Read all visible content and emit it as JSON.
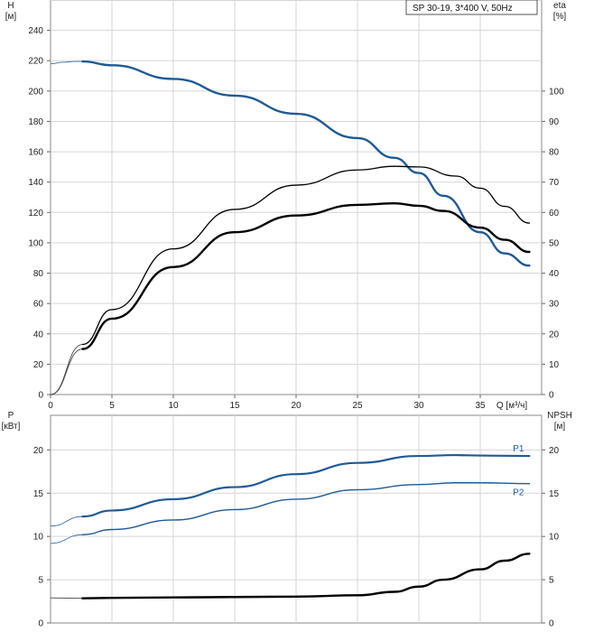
{
  "chart_data": [
    {
      "type": "line",
      "legend": "SP 30-19, 3*400 V, 50Hz",
      "xlabel": "Q [м³/ч]",
      "ylabel_left": [
        "H",
        "[м]"
      ],
      "ylabel_right": [
        "eta",
        "[%]"
      ],
      "xlim": [
        0,
        40
      ],
      "ylim_left": [
        0,
        260
      ],
      "ylim_right": [
        0,
        130
      ],
      "x_ticks": [
        "0",
        "5",
        "10",
        "15",
        "20",
        "25",
        "30",
        "35"
      ],
      "y_ticks_left": [
        "0",
        "20",
        "40",
        "60",
        "80",
        "100",
        "120",
        "140",
        "160",
        "180",
        "200",
        "220",
        "240"
      ],
      "y_ticks_right": [
        "0",
        "10",
        "20",
        "30",
        "40",
        "50",
        "60",
        "70",
        "80",
        "90",
        "100"
      ],
      "grid": true,
      "series": [
        {
          "axis": "left",
          "color": "#1f5a96",
          "points": [
            [
              0,
              218
            ],
            [
              1,
              219
            ],
            [
              2,
              219.5
            ],
            [
              2.6,
              219.5
            ],
            [
              5,
              217
            ],
            [
              10,
              208
            ],
            [
              15,
              197
            ],
            [
              20,
              185
            ],
            [
              25,
              169
            ],
            [
              28,
              156
            ],
            [
              30,
              146
            ],
            [
              32,
              131
            ],
            [
              35,
              107
            ],
            [
              37,
              93
            ],
            [
              39,
              85
            ]
          ]
        },
        {
          "axis": "right",
          "color": "#000000",
          "points": [
            [
              0,
              0
            ],
            [
              2.6,
              15
            ],
            [
              5,
              25
            ],
            [
              10,
              42
            ],
            [
              15,
              53.5
            ],
            [
              20,
              59
            ],
            [
              25,
              62.5
            ],
            [
              28,
              63
            ],
            [
              30,
              62.2
            ],
            [
              32,
              60.5
            ],
            [
              35,
              55
            ],
            [
              37,
              51
            ],
            [
              39,
              47
            ]
          ]
        },
        {
          "axis": "right",
          "color": "#000000",
          "points": [
            [
              0,
              0
            ],
            [
              2.6,
              16.5
            ],
            [
              5,
              28
            ],
            [
              10,
              48
            ],
            [
              15,
              61
            ],
            [
              20,
              69
            ],
            [
              25,
              74
            ],
            [
              28,
              75.2
            ],
            [
              30,
              75
            ],
            [
              33,
              72
            ],
            [
              35,
              68
            ],
            [
              37,
              62
            ],
            [
              39,
              56.5
            ]
          ]
        }
      ]
    },
    {
      "type": "line",
      "xlabel": "",
      "ylabel_left": [
        "P",
        "[кВт]"
      ],
      "ylabel_right": [
        "NPSH",
        "[м]"
      ],
      "xlim": [
        0,
        40
      ],
      "ylim_left": [
        0,
        24
      ],
      "ylim_right": [
        0,
        24
      ],
      "y_ticks_left": [
        "0",
        "5",
        "10",
        "15",
        "20"
      ],
      "y_ticks_right": [
        "0",
        "5",
        "10",
        "15",
        "20"
      ],
      "grid": true,
      "series": [
        {
          "name": "P1",
          "axis": "left",
          "color": "#1f5a96",
          "points": [
            [
              0,
              11.2
            ],
            [
              2.6,
              12.3
            ],
            [
              5,
              13
            ],
            [
              10,
              14.3
            ],
            [
              15,
              15.7
            ],
            [
              20,
              17.2
            ],
            [
              25,
              18.5
            ],
            [
              30,
              19.3
            ],
            [
              33,
              19.4
            ],
            [
              35,
              19.35
            ],
            [
              39,
              19.3
            ]
          ]
        },
        {
          "name": "P2",
          "axis": "left",
          "color": "#1f5a96",
          "points": [
            [
              0,
              9.2
            ],
            [
              2.6,
              10.2
            ],
            [
              5,
              10.8
            ],
            [
              10,
              11.9
            ],
            [
              15,
              13.1
            ],
            [
              20,
              14.3
            ],
            [
              25,
              15.4
            ],
            [
              30,
              16
            ],
            [
              33,
              16.2
            ],
            [
              35,
              16.2
            ],
            [
              39,
              16.1
            ]
          ]
        },
        {
          "axis": "right",
          "color": "#000000",
          "points": [
            [
              0,
              2.9
            ],
            [
              2.6,
              2.85
            ],
            [
              5,
              2.9
            ],
            [
              10,
              2.95
            ],
            [
              15,
              3
            ],
            [
              20,
              3.05
            ],
            [
              25,
              3.2
            ],
            [
              28,
              3.6
            ],
            [
              30,
              4.2
            ],
            [
              32,
              5
            ],
            [
              35,
              6.2
            ],
            [
              37,
              7.2
            ],
            [
              39,
              8
            ]
          ]
        }
      ]
    }
  ]
}
